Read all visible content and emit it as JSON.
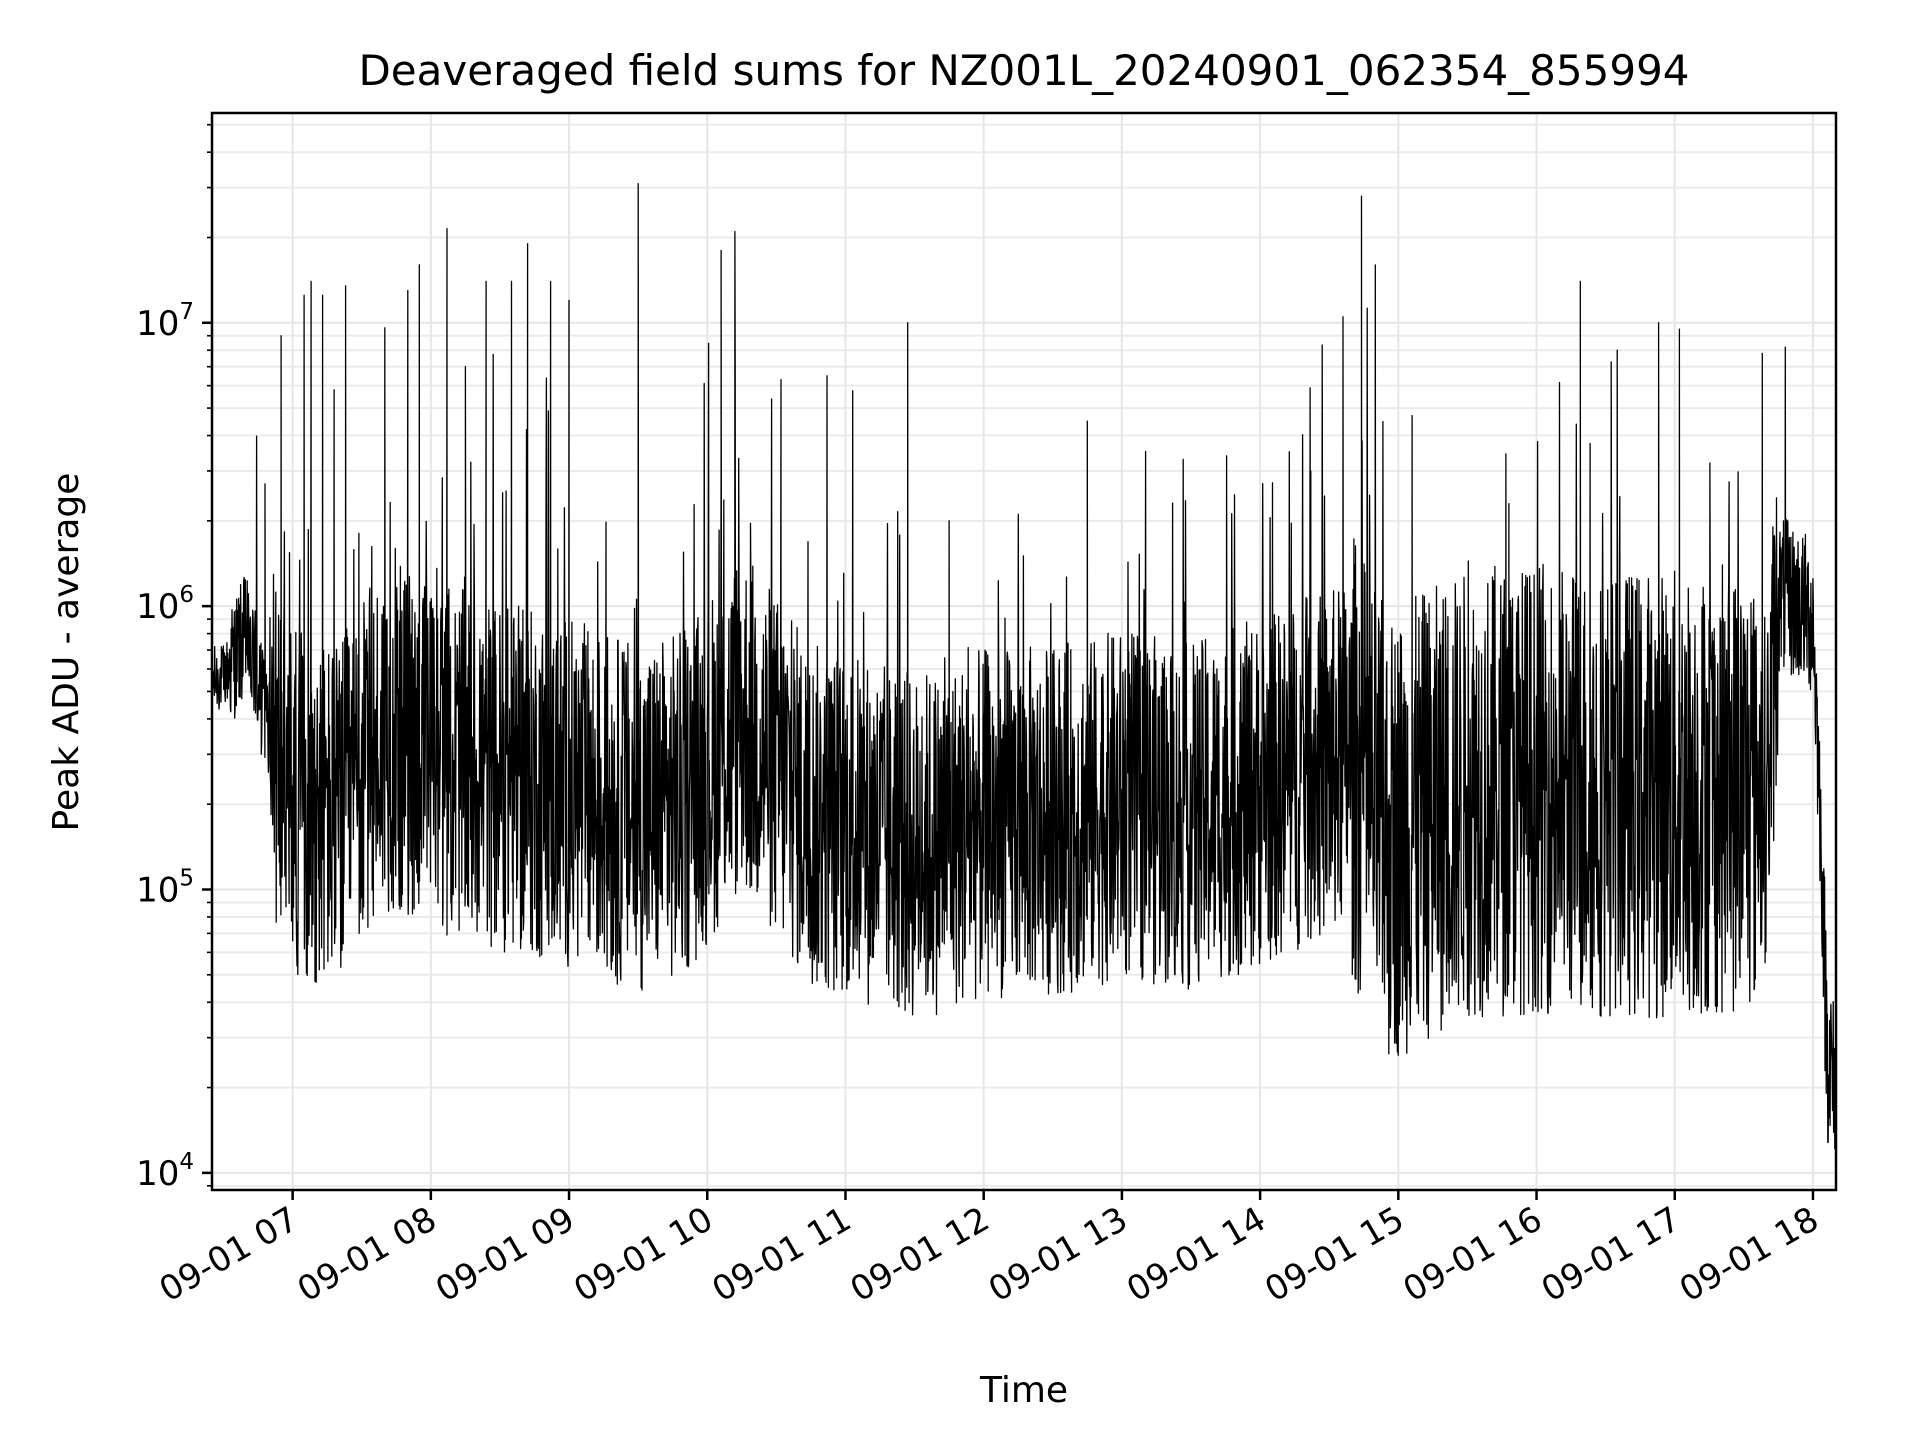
{
  "chart_data": {
    "type": "line",
    "title": "Deaveraged field sums for NZ001L_20240901_062354_855994",
    "xlabel": "Time",
    "ylabel": "Peak ADU - average",
    "x_axis": {
      "type": "time",
      "range": [
        "2024-09-01 06:25",
        "2024-09-01 18:10"
      ],
      "ticks": [
        "2024-09-01 07:00",
        "2024-09-01 08:00",
        "2024-09-01 09:00",
        "2024-09-01 10:00",
        "2024-09-01 11:00",
        "2024-09-01 12:00",
        "2024-09-01 13:00",
        "2024-09-01 14:00",
        "2024-09-01 15:00",
        "2024-09-01 16:00",
        "2024-09-01 17:00",
        "2024-09-01 18:00"
      ],
      "tick_labels": [
        "09-01 07",
        "09-01 08",
        "09-01 09",
        "09-01 10",
        "09-01 11",
        "09-01 12",
        "09-01 13",
        "09-01 14",
        "09-01 15",
        "09-01 16",
        "09-01 17",
        "09-01 18"
      ],
      "tick_rotation_deg": -30
    },
    "y_axis": {
      "scale": "log",
      "range": [
        8700,
        55000000
      ],
      "ticks": [
        10000,
        100000,
        1000000,
        10000000
      ],
      "tick_labels": [
        {
          "base": "10",
          "exp": "4"
        },
        {
          "base": "10",
          "exp": "5"
        },
        {
          "base": "10",
          "exp": "6"
        },
        {
          "base": "10",
          "exp": "7"
        }
      ]
    },
    "grid": true,
    "series": [
      {
        "color": "#000000",
        "anchor_points": [
          [
            "2024-09-01 06:25",
            550000
          ],
          [
            "2024-09-01 06:30",
            560000
          ],
          [
            "2024-09-01 06:40",
            800000
          ],
          [
            "2024-09-01 06:50",
            350000
          ],
          [
            "2024-09-01 07:00",
            210000
          ],
          [
            "2024-09-01 07:20",
            180000
          ],
          [
            "2024-09-01 07:40",
            350000
          ],
          [
            "2024-09-01 08:00",
            300000
          ],
          [
            "2024-09-01 08:30",
            250000
          ],
          [
            "2024-09-01 09:00",
            220000
          ],
          [
            "2024-09-01 09:30",
            180000
          ],
          [
            "2024-09-01 09:50",
            200000
          ],
          [
            "2024-09-01 10:15",
            400000
          ],
          [
            "2024-09-01 10:45",
            180000
          ],
          [
            "2024-09-01 11:00",
            170000
          ],
          [
            "2024-09-01 11:30",
            140000
          ],
          [
            "2024-09-01 12:00",
            170000
          ],
          [
            "2024-09-01 12:40",
            180000
          ],
          [
            "2024-09-01 13:00",
            200000
          ],
          [
            "2024-09-01 13:30",
            180000
          ],
          [
            "2024-09-01 14:00",
            220000
          ],
          [
            "2024-09-01 14:40",
            300000
          ],
          [
            "2024-09-01 14:55",
            150000
          ],
          [
            "2024-09-01 15:30",
            220000
          ],
          [
            "2024-09-01 16:00",
            230000
          ],
          [
            "2024-09-01 16:30",
            220000
          ],
          [
            "2024-09-01 17:00",
            220000
          ],
          [
            "2024-09-01 17:40",
            230000
          ],
          [
            "2024-09-01 17:45",
            1100000
          ],
          [
            "2024-09-01 17:55",
            1000000
          ],
          [
            "2024-09-01 18:00",
            900000
          ],
          [
            "2024-09-01 18:03",
            200000
          ],
          [
            "2024-09-01 18:06",
            30000
          ],
          [
            "2024-09-01 18:10",
            16000
          ]
        ],
        "peaks": [
          [
            "2024-09-01 06:48",
            2700000
          ],
          [
            "2024-09-01 06:55",
            9000000
          ],
          [
            "2024-09-01 07:05",
            12500000
          ],
          [
            "2024-09-01 07:08",
            14000000
          ],
          [
            "2024-09-01 07:13",
            12500000
          ],
          [
            "2024-09-01 07:18",
            5800000
          ],
          [
            "2024-09-01 07:23",
            13500000
          ],
          [
            "2024-09-01 07:40",
            9600000
          ],
          [
            "2024-09-01 07:50",
            13000000
          ],
          [
            "2024-09-01 07:55",
            16000000
          ],
          [
            "2024-09-01 08:07",
            21500000
          ],
          [
            "2024-09-01 08:15",
            7000000
          ],
          [
            "2024-09-01 08:24",
            14000000
          ],
          [
            "2024-09-01 08:35",
            14000000
          ],
          [
            "2024-09-01 08:42",
            19000000
          ],
          [
            "2024-09-01 08:52",
            14000000
          ],
          [
            "2024-09-01 09:00",
            12000000
          ],
          [
            "2024-09-01 09:30",
            31000000
          ],
          [
            "2024-09-01 10:06",
            18000000
          ],
          [
            "2024-09-01 10:12",
            21000000
          ],
          [
            "2024-09-01 10:32",
            6300000
          ],
          [
            "2024-09-01 10:52",
            6500000
          ],
          [
            "2024-09-01 11:27",
            10000000
          ],
          [
            "2024-09-01 11:45",
            2000000
          ],
          [
            "2024-09-01 12:45",
            4500000
          ],
          [
            "2024-09-01 14:22",
            3000000
          ],
          [
            "2024-09-01 14:36",
            10500000
          ],
          [
            "2024-09-01 14:44",
            28000000
          ],
          [
            "2024-09-01 14:50",
            16000000
          ],
          [
            "2024-09-01 15:06",
            4700000
          ],
          [
            "2024-09-01 15:48",
            2300000
          ],
          [
            "2024-09-01 16:19",
            14000000
          ],
          [
            "2024-09-01 16:35",
            8000000
          ],
          [
            "2024-09-01 16:53",
            10000000
          ],
          [
            "2024-09-01 17:02",
            9500000
          ],
          [
            "2024-09-01 17:38",
            7800000
          ],
          [
            "2024-09-01 17:48",
            8200000
          ]
        ]
      }
    ]
  }
}
